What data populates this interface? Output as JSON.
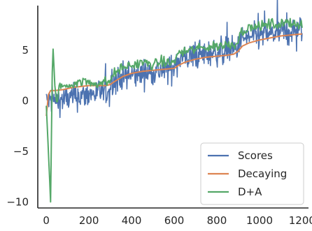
{
  "chart_data": {
    "type": "line",
    "title": "",
    "xlabel": "",
    "ylabel": "",
    "xlim": [
      -40,
      1230
    ],
    "ylim": [
      -10.6,
      9.4
    ],
    "xticks": [
      0,
      200,
      400,
      600,
      800,
      1000,
      1200
    ],
    "xtick_labels": [
      "0",
      "200",
      "400",
      "600",
      "800",
      "1000",
      "1200"
    ],
    "yticks": [
      -10,
      -5,
      0,
      5
    ],
    "ytick_labels": [
      "−10",
      "−5",
      "0",
      "5"
    ],
    "grid": false,
    "legend_position": "lower-right",
    "series": [
      {
        "name": "Scores",
        "color": "#4c72b0",
        "description": "noisy stepwise signal, n=1200",
        "x": [
          0,
          50,
          100,
          150,
          200,
          250,
          300,
          302,
          350,
          400,
          450,
          500,
          550,
          600,
          602,
          650,
          700,
          750,
          800,
          850,
          900,
          902,
          950,
          1000,
          1050,
          1100,
          1150,
          1200
        ],
        "y": [
          0.0,
          0.0,
          0.2,
          0.4,
          0.6,
          0.8,
          1.0,
          2.0,
          2.3,
          2.5,
          2.7,
          2.9,
          3.0,
          3.2,
          4.0,
          4.2,
          4.4,
          4.6,
          4.8,
          5.0,
          5.1,
          6.0,
          6.2,
          6.4,
          6.6,
          6.8,
          6.9,
          7.0
        ],
        "noise_amplitude": 1.1
      },
      {
        "name": "Decaying",
        "color": "#dd8452",
        "x": [
          0,
          10,
          20,
          40,
          80,
          120,
          160,
          200,
          240,
          280,
          300,
          320,
          360,
          400,
          450,
          500,
          550,
          600,
          620,
          650,
          700,
          750,
          800,
          850,
          880,
          900,
          920,
          950,
          1000,
          1050,
          1100,
          1150,
          1200
        ],
        "y": [
          -1.5,
          0.6,
          1.0,
          1.0,
          1.1,
          1.3,
          1.4,
          1.5,
          1.5,
          1.5,
          1.6,
          1.9,
          2.4,
          2.7,
          2.9,
          3.0,
          3.1,
          3.2,
          3.5,
          3.8,
          4.1,
          4.3,
          4.4,
          4.5,
          4.6,
          4.9,
          5.4,
          5.7,
          6.0,
          6.2,
          6.4,
          6.5,
          6.6
        ]
      },
      {
        "name": "D+A",
        "color": "#55a868",
        "x": [
          0,
          10,
          20,
          30,
          40,
          50,
          60,
          80,
          100,
          140,
          180,
          220,
          260,
          300,
          310,
          340,
          380,
          420,
          460,
          500,
          540,
          580,
          600,
          610,
          640,
          680,
          720,
          760,
          800,
          840,
          880,
          900,
          910,
          940,
          980,
          1020,
          1060,
          1100,
          1140,
          1180,
          1200
        ],
        "y": [
          -0.5,
          -5.0,
          -10.0,
          6.0,
          1.5,
          -0.5,
          1.5,
          1.4,
          1.5,
          1.8,
          1.9,
          1.7,
          1.8,
          1.9,
          2.5,
          3.1,
          3.4,
          3.6,
          3.8,
          3.5,
          3.9,
          3.7,
          3.8,
          4.5,
          4.8,
          5.0,
          5.2,
          5.3,
          5.4,
          5.5,
          5.6,
          5.8,
          6.8,
          7.1,
          7.3,
          7.4,
          7.6,
          7.5,
          7.8,
          7.6,
          7.4
        ],
        "noise_amplitude": 0.35
      }
    ]
  }
}
